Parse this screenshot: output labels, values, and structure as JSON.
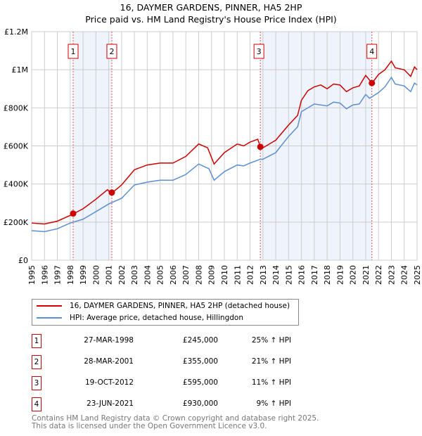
{
  "title": "16, DAYMER GARDENS, PINNER, HA5 2HP",
  "subtitle": "Price paid vs. HM Land Registry's House Price Index (HPI)",
  "chart_data": {
    "type": "line",
    "title": "16, DAYMER GARDENS, PINNER, HA5 2HP",
    "subtitle": "Price paid vs. HM Land Registry's House Price Index (HPI)",
    "xlim": [
      1995,
      2025
    ],
    "ylim": [
      0,
      1200000
    ],
    "x_ticks": [
      "1995",
      "1996",
      "1997",
      "1998",
      "1999",
      "2000",
      "2001",
      "2002",
      "2003",
      "2004",
      "2005",
      "2006",
      "2007",
      "2008",
      "2009",
      "2010",
      "2011",
      "2012",
      "2013",
      "2014",
      "2015",
      "2016",
      "2017",
      "2018",
      "2019",
      "2020",
      "2021",
      "2022",
      "2023",
      "2024",
      "2025"
    ],
    "y_ticks": [
      {
        "v": 0,
        "label": "£0"
      },
      {
        "v": 200000,
        "label": "£200K"
      },
      {
        "v": 400000,
        "label": "£400K"
      },
      {
        "v": 600000,
        "label": "£600K"
      },
      {
        "v": 800000,
        "label": "£800K"
      },
      {
        "v": 1000000,
        "label": "£1M"
      },
      {
        "v": 1200000,
        "label": "£1.2M"
      }
    ],
    "grid": true,
    "series": [
      {
        "name": "16, DAYMER GARDENS, PINNER, HA5 2HP (detached house)",
        "color": "#cc0000",
        "points": [
          [
            1995,
            195
          ],
          [
            1996,
            190
          ],
          [
            1997,
            205
          ],
          [
            1998,
            235
          ],
          [
            1999,
            270
          ],
          [
            2000,
            320
          ],
          [
            2000.9,
            370
          ],
          [
            2001.2,
            350
          ],
          [
            2002,
            395
          ],
          [
            2003,
            475
          ],
          [
            2004,
            500
          ],
          [
            2005,
            510
          ],
          [
            2006,
            510
          ],
          [
            2007,
            545
          ],
          [
            2008,
            610
          ],
          [
            2008.7,
            590
          ],
          [
            2009.2,
            505
          ],
          [
            2010,
            565
          ],
          [
            2011,
            610
          ],
          [
            2011.5,
            600
          ],
          [
            2012,
            620
          ],
          [
            2012.6,
            635
          ],
          [
            2012.8,
            595
          ],
          [
            2013,
            590
          ],
          [
            2014,
            630
          ],
          [
            2015,
            710
          ],
          [
            2015.7,
            760
          ],
          [
            2016,
            840
          ],
          [
            2016.5,
            890
          ],
          [
            2017,
            910
          ],
          [
            2017.5,
            920
          ],
          [
            2018,
            900
          ],
          [
            2018.5,
            925
          ],
          [
            2019,
            920
          ],
          [
            2019.5,
            885
          ],
          [
            2020,
            905
          ],
          [
            2020.5,
            915
          ],
          [
            2021,
            970
          ],
          [
            2021.5,
            930
          ],
          [
            2022,
            975
          ],
          [
            2022.5,
            1000
          ],
          [
            2023,
            1045
          ],
          [
            2023.3,
            1010
          ],
          [
            2024,
            1000
          ],
          [
            2024.5,
            965
          ],
          [
            2024.8,
            1015
          ],
          [
            2025,
            1000
          ]
        ]
      },
      {
        "name": "HPI: Average price, detached house, Hillingdon",
        "color": "#5b8fd0",
        "points": [
          [
            1995,
            155
          ],
          [
            1996,
            150
          ],
          [
            1997,
            165
          ],
          [
            1998,
            195
          ],
          [
            1999,
            215
          ],
          [
            2000,
            255
          ],
          [
            2001,
            295
          ],
          [
            2002,
            325
          ],
          [
            2003,
            395
          ],
          [
            2004,
            410
          ],
          [
            2005,
            420
          ],
          [
            2006,
            420
          ],
          [
            2007,
            450
          ],
          [
            2008,
            505
          ],
          [
            2008.8,
            480
          ],
          [
            2009.2,
            420
          ],
          [
            2010,
            465
          ],
          [
            2011,
            500
          ],
          [
            2011.5,
            495
          ],
          [
            2012,
            510
          ],
          [
            2012.8,
            530
          ],
          [
            2013,
            530
          ],
          [
            2014,
            565
          ],
          [
            2015,
            650
          ],
          [
            2015.7,
            700
          ],
          [
            2016,
            780
          ],
          [
            2016.5,
            800
          ],
          [
            2017,
            820
          ],
          [
            2018,
            810
          ],
          [
            2018.5,
            830
          ],
          [
            2019,
            825
          ],
          [
            2019.5,
            795
          ],
          [
            2020,
            815
          ],
          [
            2020.5,
            820
          ],
          [
            2021,
            870
          ],
          [
            2021.3,
            850
          ],
          [
            2022,
            880
          ],
          [
            2022.5,
            910
          ],
          [
            2023,
            960
          ],
          [
            2023.3,
            925
          ],
          [
            2024,
            915
          ],
          [
            2024.5,
            885
          ],
          [
            2024.8,
            930
          ],
          [
            2025,
            920
          ]
        ]
      }
    ],
    "y_unit": "thousands GBP",
    "shaded_ranges": [
      [
        1998.23,
        2001.24
      ],
      [
        2012.8,
        2021.48
      ]
    ],
    "sales": [
      {
        "n": "1",
        "x": 1998.23,
        "price": 245000
      },
      {
        "n": "2",
        "x": 2001.24,
        "price": 355000
      },
      {
        "n": "3",
        "x": 2012.8,
        "price": 595000
      },
      {
        "n": "4",
        "x": 2021.48,
        "price": 930000
      }
    ]
  },
  "legend": [
    "16, DAYMER GARDENS, PINNER, HA5 2HP (detached house)",
    "HPI: Average price, detached house, Hillingdon"
  ],
  "transactions": [
    {
      "n": "1",
      "date": "27-MAR-1998",
      "price": "£245,000",
      "hpi": "25% ↑ HPI"
    },
    {
      "n": "2",
      "date": "28-MAR-2001",
      "price": "£355,000",
      "hpi": "21% ↑ HPI"
    },
    {
      "n": "3",
      "date": "19-OCT-2012",
      "price": "£595,000",
      "hpi": "11% ↑ HPI"
    },
    {
      "n": "4",
      "date": "23-JUN-2021",
      "price": "£930,000",
      "hpi": "9% ↑ HPI"
    }
  ],
  "footer": [
    "Contains HM Land Registry data © Crown copyright and database right 2025.",
    "This data is licensed under the Open Government Licence v3.0."
  ]
}
